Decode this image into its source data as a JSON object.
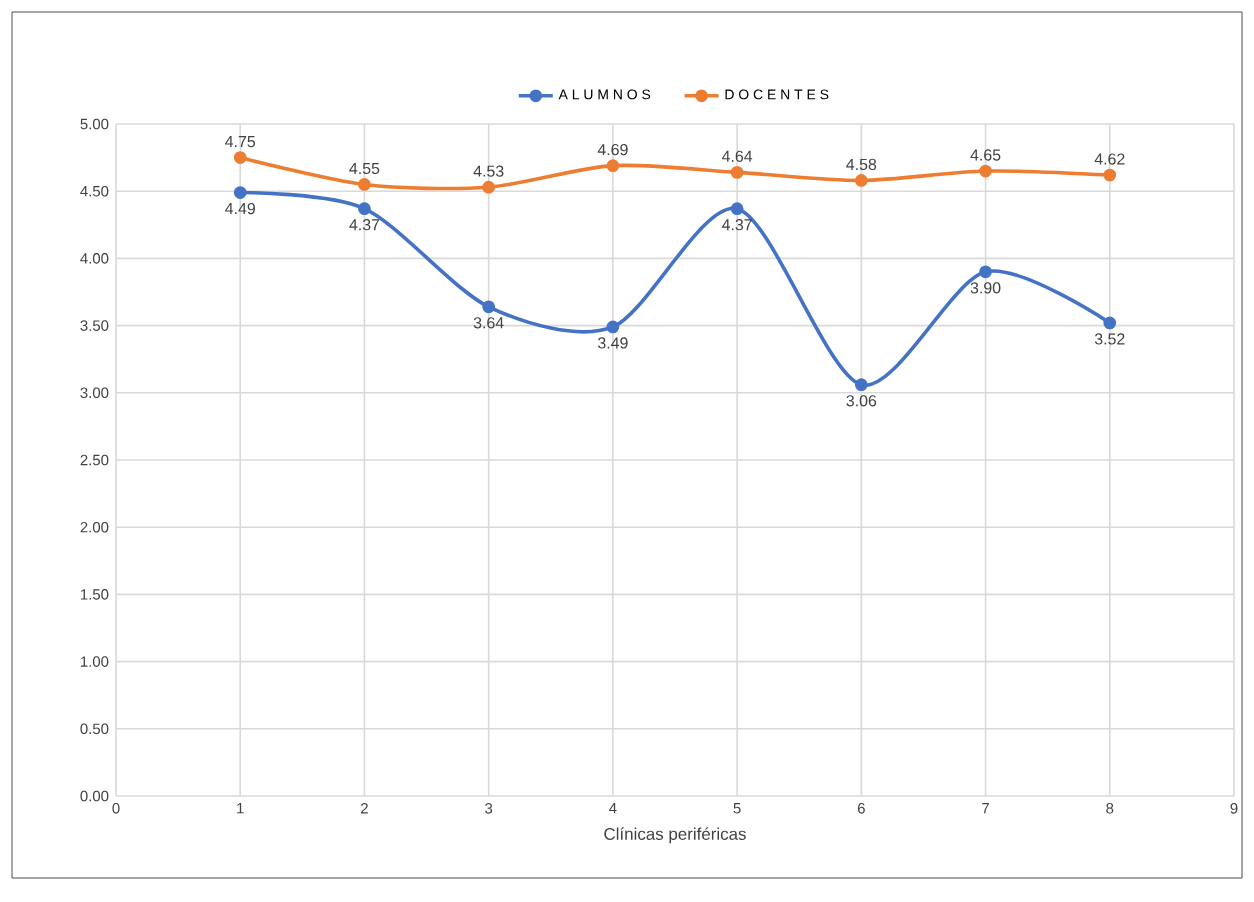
{
  "chart_data": {
    "type": "line",
    "xlabel": "Clínicas periféricas",
    "x": [
      1,
      2,
      3,
      4,
      5,
      6,
      7,
      8
    ],
    "series": [
      {
        "name": "A L U M N O S",
        "color": "#4472c4",
        "values": [
          4.49,
          4.37,
          3.64,
          3.49,
          4.37,
          3.06,
          3.9,
          3.52
        ],
        "value_labels": [
          "4.49",
          "4.37",
          "3.64",
          "3.49",
          "4.37",
          "3.06",
          "3.90",
          "3.52"
        ]
      },
      {
        "name": "D O C E N T E S",
        "color": "#ed7d31",
        "values": [
          4.75,
          4.55,
          4.53,
          4.69,
          4.64,
          4.58,
          4.65,
          4.62
        ],
        "value_labels": [
          "4.75",
          "4.55",
          "4.53",
          "4.69",
          "4.64",
          "4.58",
          "4.65",
          "4.62"
        ]
      }
    ],
    "xlim": [
      0,
      9
    ],
    "xticks": [
      0,
      1,
      2,
      3,
      4,
      5,
      6,
      7,
      8,
      9
    ],
    "ylim": [
      0,
      5
    ],
    "yticks": [
      {
        "value": 0,
        "label": "0.00"
      },
      {
        "value": 0.5,
        "label": "0.50"
      },
      {
        "value": 1,
        "label": "1.00"
      },
      {
        "value": 1.5,
        "label": "1.50"
      },
      {
        "value": 2,
        "label": "2.00"
      },
      {
        "value": 2.5,
        "label": "2.50"
      },
      {
        "value": 3,
        "label": "3.00"
      },
      {
        "value": 3.5,
        "label": "3.50"
      },
      {
        "value": 4,
        "label": "4.00"
      },
      {
        "value": 4.5,
        "label": "4.50"
      },
      {
        "value": 5,
        "label": "5.00"
      }
    ],
    "grid": true,
    "legend": "top",
    "marker": "circle",
    "line_style": "solid"
  }
}
